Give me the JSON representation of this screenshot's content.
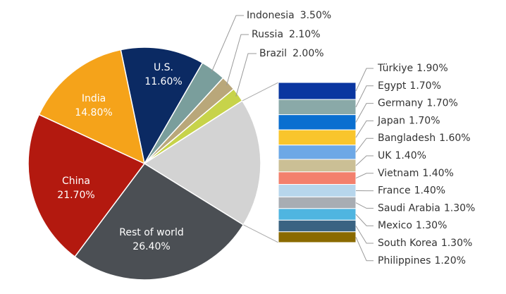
{
  "chart_data": {
    "type": "pie",
    "categories": [
      "U.S.",
      "Indonesia",
      "Russia",
      "Brazil",
      null,
      "Rest of world",
      "China",
      "India"
    ],
    "values": [
      11.6,
      3.5,
      2.1,
      2.0,
      17.9,
      26.4,
      21.7,
      14.8
    ],
    "value_labels": [
      "11.60%",
      "3.50%",
      "2.10%",
      "2.00%",
      null,
      "26.40%",
      "21.70%",
      "14.80%"
    ],
    "colors": [
      "#0b2a63",
      "#7a9e9c",
      "#b9a77a",
      "#c7d34a",
      "#d3d3d3",
      "#4b4f54",
      "#b3190f",
      "#f5a31a"
    ],
    "breakdown": {
      "categories": [
        "Türkiye",
        "Egypt",
        "Germany",
        "Japan",
        "Bangladesh",
        "UK",
        "Vietnam",
        "France",
        "Saudi Arabia",
        "Mexico",
        "South Korea",
        "Philippines"
      ],
      "values": [
        1.9,
        1.7,
        1.7,
        1.7,
        1.6,
        1.4,
        1.4,
        1.4,
        1.3,
        1.3,
        1.3,
        1.2
      ],
      "value_labels": [
        "1.90%",
        "1.70%",
        "1.70%",
        "1.70%",
        "1.60%",
        "1.40%",
        "1.40%",
        "1.40%",
        "1.30%",
        "1.30%",
        "1.30%",
        "1.20%"
      ],
      "colors": [
        "#0a36a0",
        "#8aa9a8",
        "#0a6fd0",
        "#f9c52c",
        "#6da8e6",
        "#cbbf95",
        "#f3806d",
        "#b7d6ec",
        "#a8adb3",
        "#4fb5e0",
        "#3a6382",
        "#8a6a00"
      ]
    }
  }
}
